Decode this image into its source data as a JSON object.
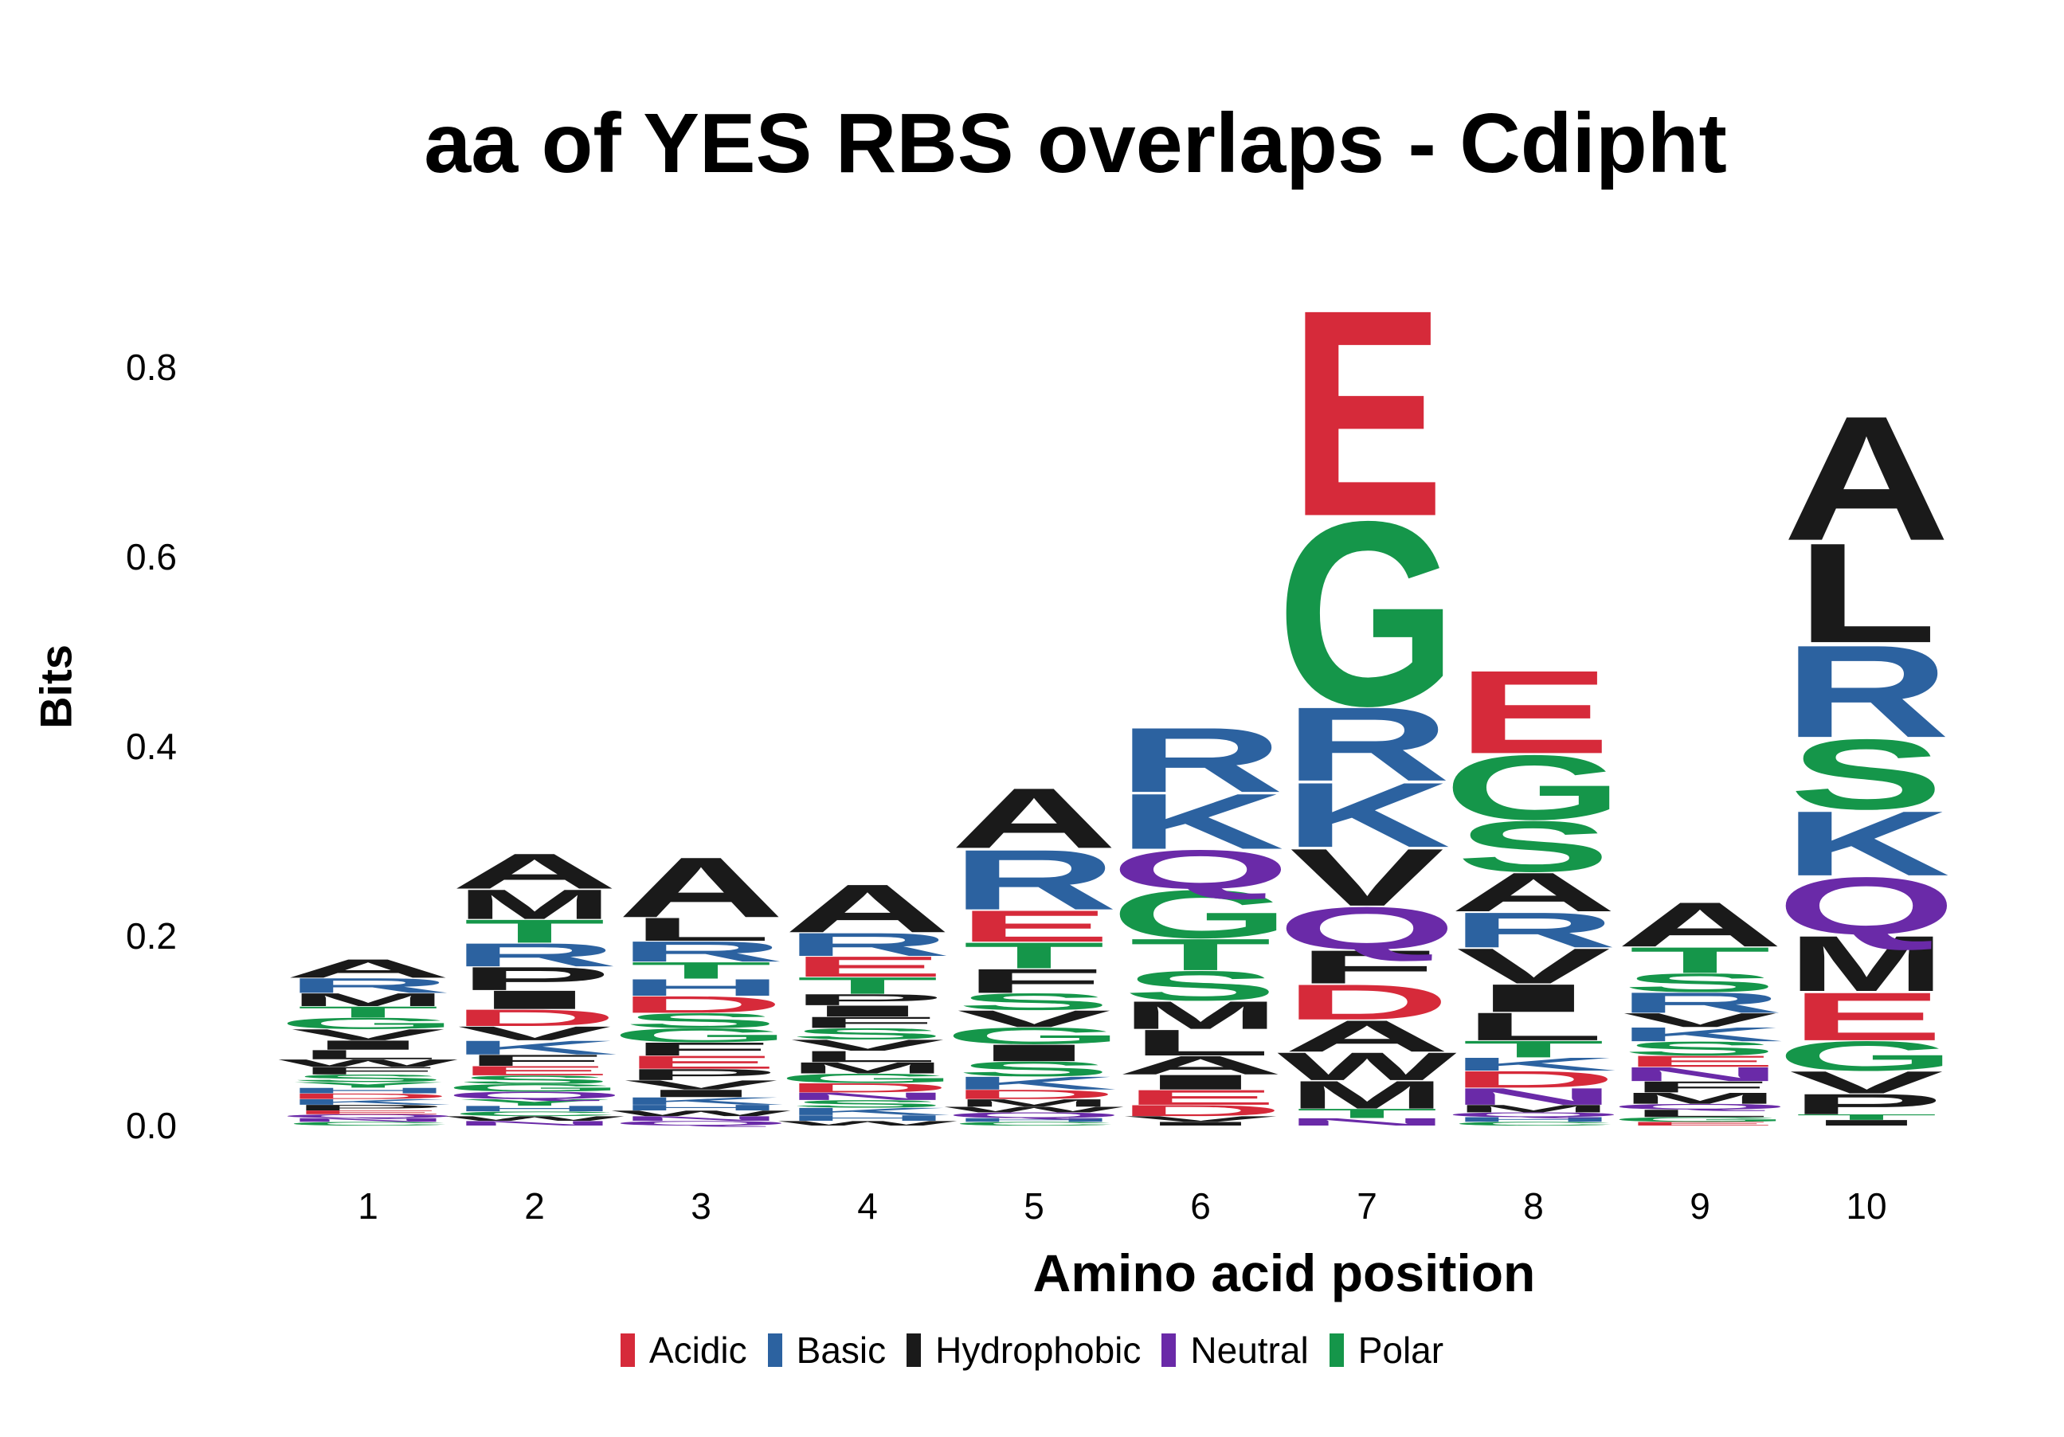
{
  "chart_data": {
    "type": "sequence-logo",
    "title": "aa of YES RBS overlaps - Cdipht",
    "xlabel": "Amino acid position",
    "ylabel": "Bits",
    "ylim": [
      0,
      0.9
    ],
    "y_ticks": [
      "0.0",
      "0.2",
      "0.4",
      "0.6",
      "0.8"
    ],
    "x_ticks": [
      "1",
      "2",
      "3",
      "4",
      "5",
      "6",
      "7",
      "8",
      "9",
      "10"
    ],
    "color_groups": {
      "Acidic": "#d62a3a",
      "Basic": "#2c62a0",
      "Hydrophobic": "#1a1a1a",
      "Neutral": "#6a2aa8",
      "Polar": "#15964a"
    },
    "legend": [
      "Acidic",
      "Basic",
      "Hydrophobic",
      "Neutral",
      "Polar"
    ],
    "positions": [
      {
        "pos": "1",
        "stack": [
          [
            "C",
            0.004
          ],
          [
            "N",
            0.004
          ],
          [
            "Q",
            0.004
          ],
          [
            "E",
            0.004
          ],
          [
            "P",
            0.006
          ],
          [
            "K",
            0.006
          ],
          [
            "D",
            0.006
          ],
          [
            "H",
            0.006
          ],
          [
            "Y",
            0.006
          ],
          [
            "S",
            0.008
          ],
          [
            "F",
            0.008
          ],
          [
            "W",
            0.008
          ],
          [
            "L",
            0.01
          ],
          [
            "I",
            0.01
          ],
          [
            "V",
            0.012
          ],
          [
            "G",
            0.012
          ],
          [
            "T",
            0.012
          ],
          [
            "M",
            0.014
          ],
          [
            "R",
            0.016
          ],
          [
            "A",
            0.02
          ]
        ]
      },
      {
        "pos": "2",
        "stack": [
          [
            "N",
            0.005
          ],
          [
            "W",
            0.005
          ],
          [
            "C",
            0.005
          ],
          [
            "H",
            0.006
          ],
          [
            "Y",
            0.007
          ],
          [
            "Q",
            0.008
          ],
          [
            "G",
            0.008
          ],
          [
            "S",
            0.009
          ],
          [
            "E",
            0.01
          ],
          [
            "F",
            0.012
          ],
          [
            "K",
            0.015
          ],
          [
            "V",
            0.015
          ],
          [
            "D",
            0.018
          ],
          [
            "I",
            0.02
          ],
          [
            "P",
            0.025
          ],
          [
            "R",
            0.025
          ],
          [
            "T",
            0.025
          ],
          [
            "M",
            0.032
          ],
          [
            "A",
            0.038
          ]
        ]
      },
      {
        "pos": "3",
        "stack": [
          [
            "Q",
            0.005
          ],
          [
            "N",
            0.005
          ],
          [
            "W",
            0.006
          ],
          [
            "H",
            0.006
          ],
          [
            "K",
            0.008
          ],
          [
            "I",
            0.008
          ],
          [
            "V",
            0.01
          ],
          [
            "P",
            0.012
          ],
          [
            "E",
            0.014
          ],
          [
            "F",
            0.014
          ],
          [
            "G",
            0.015
          ],
          [
            "S",
            0.016
          ],
          [
            "D",
            0.018
          ],
          [
            "H",
            0.018
          ],
          [
            "T",
            0.018
          ],
          [
            "R",
            0.022
          ],
          [
            "L",
            0.025
          ],
          [
            "A",
            0.065
          ]
        ]
      },
      {
        "pos": "4",
        "stack": [
          [
            "W",
            0.005
          ],
          [
            "H",
            0.006
          ],
          [
            "K",
            0.008
          ],
          [
            "S",
            0.008
          ],
          [
            "N",
            0.008
          ],
          [
            "D",
            0.01
          ],
          [
            "G",
            0.01
          ],
          [
            "M",
            0.012
          ],
          [
            "L",
            0.012
          ],
          [
            "V",
            0.012
          ],
          [
            "S",
            0.012
          ],
          [
            "F",
            0.012
          ],
          [
            "I",
            0.012
          ],
          [
            "P",
            0.012
          ],
          [
            "T",
            0.018
          ],
          [
            "E",
            0.022
          ],
          [
            "R",
            0.025
          ],
          [
            "A",
            0.052
          ]
        ]
      },
      {
        "pos": "5",
        "stack": [
          [
            "C",
            0.004
          ],
          [
            "H",
            0.004
          ],
          [
            "Q",
            0.006
          ],
          [
            "W",
            0.006
          ],
          [
            "M",
            0.008
          ],
          [
            "D",
            0.01
          ],
          [
            "K",
            0.014
          ],
          [
            "S",
            0.016
          ],
          [
            "I",
            0.018
          ],
          [
            "G",
            0.018
          ],
          [
            "V",
            0.018
          ],
          [
            "S",
            0.018
          ],
          [
            "F",
            0.026
          ],
          [
            "T",
            0.028
          ],
          [
            "E",
            0.034
          ],
          [
            "R",
            0.065
          ],
          [
            "A",
            0.065
          ]
        ]
      },
      {
        "pos": "6",
        "stack": [
          [
            "I",
            0.004
          ],
          [
            "V",
            0.006
          ],
          [
            "D",
            0.012
          ],
          [
            "E",
            0.016
          ],
          [
            "I",
            0.016
          ],
          [
            "A",
            0.02
          ],
          [
            "L",
            0.028
          ],
          [
            "M",
            0.03
          ],
          [
            "S",
            0.032
          ],
          [
            "T",
            0.034
          ],
          [
            "G",
            0.052
          ],
          [
            "Q",
            0.042
          ],
          [
            "K",
            0.06
          ],
          [
            "R",
            0.07
          ]
        ]
      },
      {
        "pos": "7",
        "stack": [
          [
            "N",
            0.008
          ],
          [
            "T",
            0.01
          ],
          [
            "M",
            0.03
          ],
          [
            "W",
            0.03
          ],
          [
            "A",
            0.034
          ],
          [
            "D",
            0.038
          ],
          [
            "F",
            0.036
          ],
          [
            "Q",
            0.046
          ],
          [
            "V",
            0.062
          ],
          [
            "K",
            0.07
          ],
          [
            "R",
            0.08
          ],
          [
            "G",
            0.2
          ],
          [
            "E",
            0.224
          ]
        ]
      },
      {
        "pos": "8",
        "stack": [
          [
            "C",
            0.004
          ],
          [
            "H",
            0.005
          ],
          [
            "Q",
            0.005
          ],
          [
            "M",
            0.008
          ],
          [
            "N",
            0.018
          ],
          [
            "D",
            0.018
          ],
          [
            "K",
            0.014
          ],
          [
            "T",
            0.018
          ],
          [
            "L",
            0.03
          ],
          [
            "I",
            0.03
          ],
          [
            "V",
            0.038
          ],
          [
            "R",
            0.038
          ],
          [
            "A",
            0.042
          ],
          [
            "S",
            0.055
          ],
          [
            "G",
            0.07
          ],
          [
            "E",
            0.09
          ]
        ]
      },
      {
        "pos": "9",
        "stack": [
          [
            "E",
            0.004
          ],
          [
            "G",
            0.005
          ],
          [
            "L",
            0.008
          ],
          [
            "Q",
            0.006
          ],
          [
            "M",
            0.012
          ],
          [
            "F",
            0.012
          ],
          [
            "N",
            0.015
          ],
          [
            "E",
            0.012
          ],
          [
            "S",
            0.015
          ],
          [
            "K",
            0.015
          ],
          [
            "V",
            0.015
          ],
          [
            "R",
            0.022
          ],
          [
            "S",
            0.02
          ],
          [
            "T",
            0.028
          ],
          [
            "A",
            0.048
          ]
        ]
      },
      {
        "pos": "10",
        "stack": [
          [
            "I",
            0.006
          ],
          [
            "T",
            0.006
          ],
          [
            "P",
            0.022
          ],
          [
            "V",
            0.024
          ],
          [
            "G",
            0.032
          ],
          [
            "E",
            0.052
          ],
          [
            "M",
            0.06
          ],
          [
            "Q",
            0.062
          ],
          [
            "K",
            0.07
          ],
          [
            "S",
            0.076
          ],
          [
            "R",
            0.1
          ],
          [
            "L",
            0.108
          ],
          [
            "A",
            0.135
          ]
        ]
      }
    ]
  }
}
